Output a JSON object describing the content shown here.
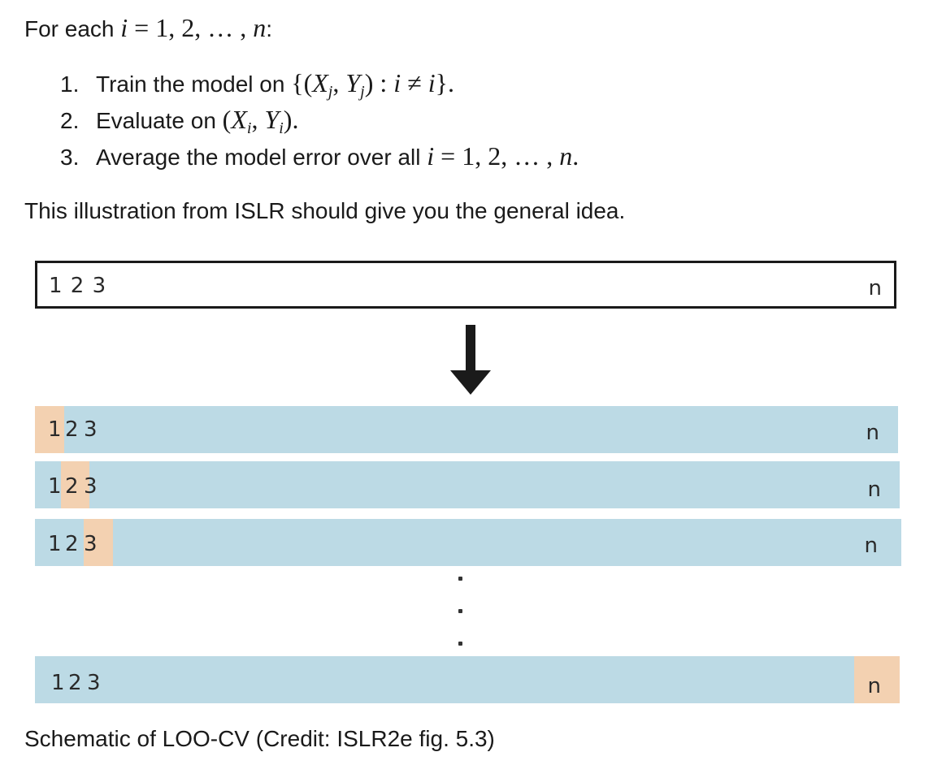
{
  "intro": {
    "prefix": "For each ",
    "var": "i",
    "equals": " = 1, 2, … , ",
    "n": "n",
    "suffix": ":"
  },
  "steps": [
    {
      "number": "1.",
      "text": "Train the model on ",
      "math": "{(X_j, Y_j) : i ≠ i}."
    },
    {
      "number": "2.",
      "text": "Evaluate on ",
      "math": "(X_i, Y_i)."
    },
    {
      "number": "3.",
      "text": "Average the model error over all ",
      "math": "i = 1, 2, … , n."
    }
  ],
  "illustration_note": "This illustration from ISLR should give you the general idea.",
  "figure": {
    "full_set": {
      "left_label": "1 2 3",
      "right_label": "n"
    },
    "arrow_icon": "down-arrow-icon",
    "rows": [
      {
        "labels": [
          "1",
          "2",
          "3"
        ],
        "right_label": "n",
        "held_out": "1"
      },
      {
        "labels": [
          "1",
          "2",
          "3"
        ],
        "right_label": "n",
        "held_out": "2"
      },
      {
        "labels": [
          "1",
          "2",
          "3"
        ],
        "right_label": "n",
        "held_out": "3"
      },
      {
        "labels": [
          "1",
          "2",
          "3"
        ],
        "right_label": "n",
        "held_out": "n"
      }
    ],
    "colors": {
      "training": "#bcdae5",
      "held_out": "#f3d1b1",
      "border": "#1a1a1a"
    }
  },
  "caption": "Schematic of LOO-CV (Credit: ISLR2e fig. 5.3)"
}
